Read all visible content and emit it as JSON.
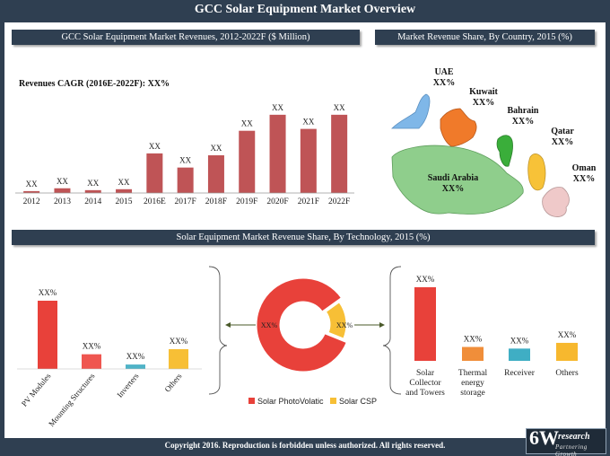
{
  "page": {
    "title": "GCC Solar Equipment Market Overview",
    "footer": "Copyright 2016. Reproduction is forbidden unless authorized. All rights reserved.",
    "logo": {
      "big": "6W",
      "small": "research",
      "tagline": "Partnering Growth"
    }
  },
  "colors": {
    "bar_red": "#bf5456",
    "panel_dark": "#2f3f51",
    "pv_red": "#e8413a",
    "mount_red": "#ef5650",
    "inverter_teal": "#4fb3c7",
    "others_yellow": "#f7bf36",
    "csp_orange": "#f08e3a",
    "csp_teal": "#3faec4",
    "csp_yellow": "#f7b82e"
  },
  "chart_data": [
    {
      "type": "bar",
      "title": "GCC Solar Equipment Market Revenues, 2012-2022F ($ Million)",
      "annotation": "Revenues CAGR (2016E-2022F): XX%",
      "categories": [
        "2012",
        "2013",
        "2014",
        "2015",
        "2016E",
        "2017F",
        "2018F",
        "2019F",
        "2020F",
        "2021F",
        "2022F"
      ],
      "values": [
        2,
        5,
        3,
        4,
        42,
        27,
        40,
        66,
        83,
        68,
        83
      ],
      "data_labels": [
        "XX",
        "XX",
        "XX",
        "XX",
        "XX",
        "XX",
        "XX",
        "XX",
        "XX",
        "XX",
        "XX"
      ],
      "ylim": [
        0,
        100
      ],
      "grid": false
    },
    {
      "type": "map",
      "title": "Market Revenue Share, By Country, 2015 (%)",
      "regions": [
        {
          "name": "UAE",
          "value": "XX%",
          "color": "#7fb7e8"
        },
        {
          "name": "Kuwait",
          "value": "XX%",
          "color": "#f07a2a"
        },
        {
          "name": "Bahrain",
          "value": "XX%",
          "color": "#3aae3a"
        },
        {
          "name": "Qatar",
          "value": "XX%",
          "color": "#f7c238"
        },
        {
          "name": "Oman",
          "value": "XX%",
          "color": "#efc9c9"
        },
        {
          "name": "Saudi Arabia",
          "value": "XX%",
          "color": "#8fce8c"
        }
      ]
    },
    {
      "type": "donut",
      "title": "Solar Equipment Market Revenue Share, By Technology, 2015 (%)",
      "slices": [
        {
          "name": "Solar PhotoVolatic",
          "value": 84,
          "label": "XX%",
          "color": "#e8413a"
        },
        {
          "name": "Solar CSP",
          "value": 16,
          "label": "XX%",
          "color": "#f7bf36"
        }
      ],
      "legend_position": "bottom"
    },
    {
      "type": "bar",
      "categories": [
        "PV Modules",
        "Mounting Structures",
        "Inverters",
        "Others"
      ],
      "values": [
        80,
        20,
        6,
        27
      ],
      "data_labels": [
        "XX%",
        "XX%",
        "XX%",
        "XX%"
      ],
      "colors": [
        "#e8413a",
        "#ef5650",
        "#4fb3c7",
        "#f7bf36"
      ]
    },
    {
      "type": "bar",
      "categories": [
        "Solar Collector and Towers",
        "Thermal energy storage",
        "Receiver",
        "Others"
      ],
      "values": [
        90,
        17,
        15,
        22
      ],
      "data_labels": [
        "XX%",
        "XX%",
        "XX%",
        "XX%"
      ],
      "colors": [
        "#e8413a",
        "#f08e3a",
        "#3faec4",
        "#f7b82e"
      ]
    }
  ]
}
